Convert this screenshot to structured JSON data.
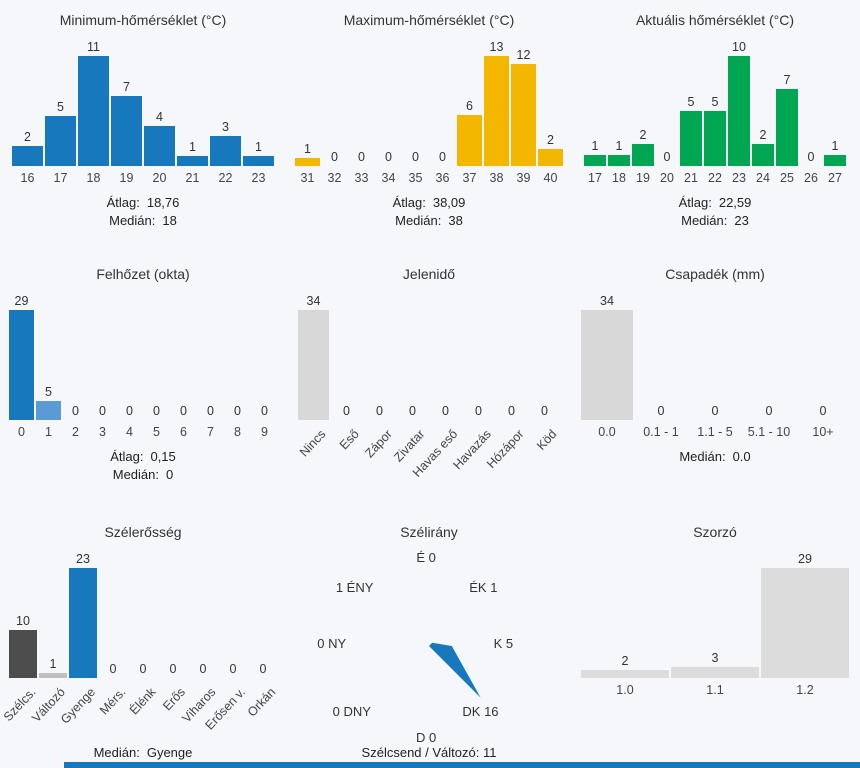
{
  "page": {
    "background": "#f5f7fa",
    "accent_blue": "#1878be"
  },
  "chart_data": [
    {
      "type": "bar",
      "title": "Minimum-hőmérséklet (°C)",
      "color": "#1878be",
      "categories": [
        "16",
        "17",
        "18",
        "19",
        "20",
        "21",
        "22",
        "23"
      ],
      "values": [
        2,
        5,
        11,
        7,
        4,
        1,
        3,
        1
      ],
      "stats": [
        {
          "label": "Átlag:",
          "value": "18,76"
        },
        {
          "label": "Medián:",
          "value": "18"
        }
      ]
    },
    {
      "type": "bar",
      "title": "Maximum-hőmérséklet (°C)",
      "color": "#f3b700",
      "categories": [
        "31",
        "32",
        "33",
        "34",
        "35",
        "36",
        "37",
        "38",
        "39",
        "40"
      ],
      "values": [
        1,
        0,
        0,
        0,
        0,
        0,
        6,
        13,
        12,
        2
      ],
      "stats": [
        {
          "label": "Átlag:",
          "value": "38,09"
        },
        {
          "label": "Medián:",
          "value": "38"
        }
      ]
    },
    {
      "type": "bar",
      "title": "Aktuális hőmérséklet (°C)",
      "color": "#00a652",
      "categories": [
        "17",
        "18",
        "19",
        "20",
        "21",
        "22",
        "23",
        "24",
        "25",
        "26",
        "27"
      ],
      "values": [
        1,
        1,
        2,
        0,
        5,
        5,
        10,
        2,
        7,
        0,
        1
      ],
      "stats": [
        {
          "label": "Átlag:",
          "value": "22,59"
        },
        {
          "label": "Medián:",
          "value": "23"
        }
      ]
    },
    {
      "type": "bar",
      "title": "Felhőzet (okta)",
      "color": "#1878be",
      "bar_colors": [
        "#1878be",
        "#5b9bd5"
      ],
      "categories": [
        "0",
        "1",
        "2",
        "3",
        "4",
        "5",
        "6",
        "7",
        "8",
        "9"
      ],
      "values": [
        29,
        5,
        0,
        0,
        0,
        0,
        0,
        0,
        0,
        0
      ],
      "stats": [
        {
          "label": "Átlag:",
          "value": "0,15"
        },
        {
          "label": "Medián:",
          "value": "0"
        }
      ]
    },
    {
      "type": "bar",
      "title": "Jelenidő",
      "color": "#d8d8d8",
      "rotated_labels": true,
      "categories": [
        "Nincs",
        "Eső",
        "Zápor",
        "Zivatar",
        "Havas eső",
        "Havazás",
        "Hózápor",
        "Köd"
      ],
      "values": [
        34,
        0,
        0,
        0,
        0,
        0,
        0,
        0
      ],
      "stats": []
    },
    {
      "type": "bar",
      "title": "Csapadék (mm)",
      "color": "#d8d8d8",
      "categories": [
        "0.0",
        "0.1 - 1",
        "1.1 - 5",
        "5.1 - 10",
        "10+"
      ],
      "values": [
        34,
        0,
        0,
        0,
        0
      ],
      "stats": [
        {
          "label": "Medián:",
          "value": "0.0"
        }
      ]
    },
    {
      "type": "bar",
      "title": "Szélerősség",
      "color": "#d8d8d8",
      "bar_colors": [
        "#4d4d4d",
        "#bfbfbf",
        "#1878be"
      ],
      "rotated_labels": true,
      "categories": [
        "Szélcs.",
        "Változó",
        "Gyenge",
        "Mérs.",
        "Élénk",
        "Erős",
        "Viharos",
        "Erősen v.",
        "Orkán"
      ],
      "values": [
        10,
        1,
        23,
        0,
        0,
        0,
        0,
        0,
        0
      ],
      "stats": [
        {
          "label": "Medián:",
          "value": "Gyenge"
        }
      ]
    },
    {
      "type": "rose",
      "title": "Szélirány",
      "color": "#1878be",
      "directions": [
        {
          "name": "É",
          "value": 0
        },
        {
          "name": "ÉK",
          "value": 1
        },
        {
          "name": "K",
          "value": 5
        },
        {
          "name": "DK",
          "value": 16
        },
        {
          "name": "D",
          "value": 0
        },
        {
          "name": "DNY",
          "value": 0
        },
        {
          "name": "NY",
          "value": 0
        },
        {
          "name": "ÉNY",
          "value": 1
        }
      ],
      "footer": "Szélcsend / Változó: 11"
    },
    {
      "type": "bar",
      "title": "Szorzó",
      "color": "#dcdcdc",
      "categories": [
        "1.0",
        "1.1",
        "1.2"
      ],
      "values": [
        2,
        3,
        29
      ],
      "stats": []
    }
  ]
}
